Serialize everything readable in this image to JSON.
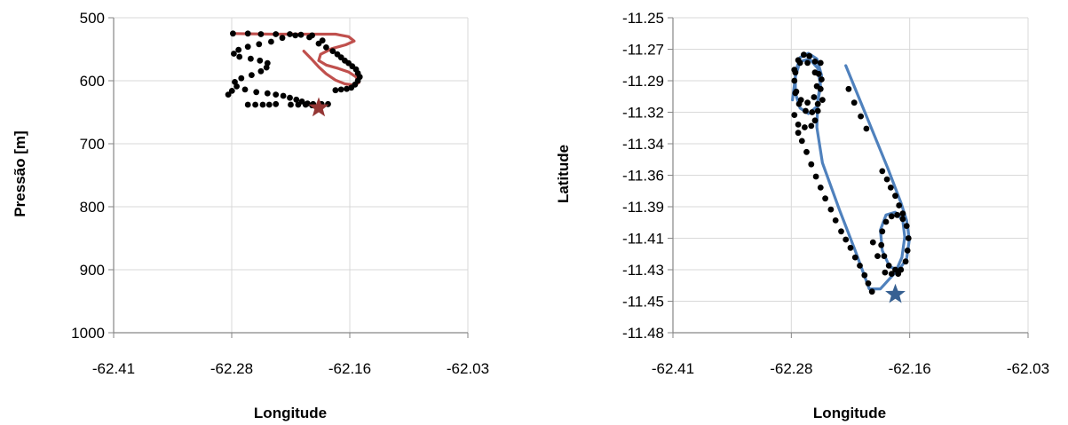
{
  "chart_data": [
    {
      "type": "scatter",
      "xlabel": "Longitude",
      "ylabel": "Pressão [m]",
      "xlim": [
        -62.41,
        -62.03
      ],
      "ylim": [
        500,
        1000
      ],
      "y_inverted": true,
      "x_ticks": [
        "-62.41",
        "-62.28",
        "-62.16",
        "-62.03"
      ],
      "y_ticks": [
        "500",
        "600",
        "700",
        "800",
        "900",
        "1000"
      ],
      "grid": "horizontal-and-vertical",
      "legend": "none",
      "line_color": "#c0504d",
      "marker_color": "#000000",
      "star_color": "#943634",
      "series": [
        {
          "role": "track-line",
          "points": [
            [
              -62.206,
              553
            ],
            [
              -62.198,
              565
            ],
            [
              -62.19,
              578
            ],
            [
              -62.182,
              589
            ],
            [
              -62.172,
              599
            ],
            [
              -62.162,
              605
            ],
            [
              -62.152,
              607
            ],
            [
              -62.147,
              603
            ],
            [
              -62.15,
              594
            ],
            [
              -62.158,
              586
            ],
            [
              -62.17,
              580
            ],
            [
              -62.182,
              575
            ],
            [
              -62.19,
              568
            ],
            [
              -62.188,
              558
            ],
            [
              -62.176,
              549
            ],
            [
              -62.161,
              543
            ],
            [
              -62.152,
              537
            ],
            [
              -62.158,
              530
            ],
            [
              -62.172,
              526
            ],
            [
              -62.2,
              526
            ],
            [
              -62.24,
              526
            ],
            [
              -62.282,
              525
            ]
          ]
        },
        {
          "role": "observations",
          "points": [
            [
              -62.282,
              525
            ],
            [
              -62.266,
              525
            ],
            [
              -62.252,
              526
            ],
            [
              -62.236,
              526
            ],
            [
              -62.221,
              526
            ],
            [
              -62.209,
              527
            ],
            [
              -62.197,
              528
            ],
            [
              -62.229,
              532
            ],
            [
              -62.241,
              538
            ],
            [
              -62.254,
              542
            ],
            [
              -62.266,
              546
            ],
            [
              -62.276,
              551
            ],
            [
              -62.281,
              557
            ],
            [
              -62.275,
              562
            ],
            [
              -62.263,
              565
            ],
            [
              -62.253,
              568
            ],
            [
              -62.245,
              572
            ],
            [
              -62.246,
              579
            ],
            [
              -62.252,
              585
            ],
            [
              -62.262,
              591
            ],
            [
              -62.273,
              596
            ],
            [
              -62.28,
              602
            ],
            [
              -62.278,
              609
            ],
            [
              -62.269,
              614
            ],
            [
              -62.257,
              618
            ],
            [
              -62.245,
              620
            ],
            [
              -62.236,
              622
            ],
            [
              -62.228,
              624
            ],
            [
              -62.221,
              627
            ],
            [
              -62.214,
              630
            ],
            [
              -62.208,
              633
            ],
            [
              -62.202,
              636
            ],
            [
              -62.197,
              639
            ],
            [
              -62.19,
              541
            ],
            [
              -62.182,
              547
            ],
            [
              -62.175,
              553
            ],
            [
              -62.17,
              558
            ],
            [
              -62.166,
              563
            ],
            [
              -62.162,
              568
            ],
            [
              -62.158,
              572
            ],
            [
              -62.154,
              577
            ],
            [
              -62.15,
              582
            ],
            [
              -62.148,
              588
            ],
            [
              -62.146,
              594
            ],
            [
              -62.148,
              600
            ],
            [
              -62.151,
              606
            ],
            [
              -62.155,
              611
            ],
            [
              -62.16,
              613
            ],
            [
              -62.166,
              614
            ],
            [
              -62.172,
              615
            ],
            [
              -62.266,
              638
            ],
            [
              -62.258,
              638
            ],
            [
              -62.25,
              638
            ],
            [
              -62.243,
              638
            ],
            [
              -62.236,
              637
            ],
            [
              -62.287,
              622
            ],
            [
              -62.283,
              616
            ],
            [
              -62.22,
              638
            ],
            [
              -62.212,
              638
            ],
            [
              -62.204,
              638
            ],
            [
              -62.196,
              637
            ],
            [
              -62.187,
              637
            ],
            [
              -62.18,
              637
            ],
            [
              -62.186,
              536
            ],
            [
              -62.2,
              531
            ],
            [
              -62.215,
              528
            ]
          ]
        }
      ],
      "marker_star": [
        -62.19,
        643
      ]
    },
    {
      "type": "scatter",
      "xlabel": "Longitude",
      "ylabel": "Latitude",
      "xlim": [
        -62.41,
        -62.03
      ],
      "ylim": [
        -11.48,
        -11.25
      ],
      "x_ticks": [
        "-62.41",
        "-62.28",
        "-62.16",
        "-62.03"
      ],
      "y_ticks": [
        "-11.25",
        "-11.27",
        "-11.29",
        "-11.32",
        "-11.34",
        "-11.36",
        "-11.39",
        "-11.41",
        "-11.43",
        "-11.45",
        "-11.48"
      ],
      "grid": "horizontal-and-vertical",
      "legend": "none",
      "line_color": "#4f81bd",
      "marker_color": "#000000",
      "star_color": "#366092",
      "series": [
        {
          "role": "track-line",
          "points": [
            [
              -62.225,
              -11.285
            ],
            [
              -62.21,
              -11.31
            ],
            [
              -62.195,
              -11.335
            ],
            [
              -62.18,
              -11.36
            ],
            [
              -62.166,
              -11.385
            ],
            [
              -62.16,
              -11.398
            ],
            [
              -62.157,
              -11.412
            ],
            [
              -62.16,
              -11.426
            ],
            [
              -62.168,
              -11.434
            ],
            [
              -62.178,
              -11.432
            ],
            [
              -62.186,
              -11.42
            ],
            [
              -62.188,
              -11.405
            ],
            [
              -62.182,
              -11.394
            ],
            [
              -62.172,
              -11.392
            ],
            [
              -62.164,
              -11.398
            ],
            [
              -62.162,
              -11.41
            ],
            [
              -62.165,
              -11.425
            ],
            [
              -62.172,
              -11.436
            ],
            [
              -62.188,
              -11.448
            ],
            [
              -62.2,
              -11.448
            ],
            [
              -62.215,
              -11.42
            ],
            [
              -62.232,
              -11.39
            ],
            [
              -62.25,
              -11.356
            ],
            [
              -62.256,
              -11.33
            ],
            [
              -62.255,
              -11.31
            ],
            [
              -62.251,
              -11.292
            ],
            [
              -62.256,
              -11.28
            ],
            [
              -62.265,
              -11.276
            ],
            [
              -62.274,
              -11.279
            ],
            [
              -62.279,
              -11.29
            ],
            [
              -62.279,
              -11.305
            ],
            [
              -62.274,
              -11.316
            ],
            [
              -62.265,
              -11.32
            ],
            [
              -62.256,
              -11.315
            ],
            [
              -62.252,
              -11.3
            ],
            [
              -62.255,
              -11.287
            ],
            [
              -62.264,
              -11.28
            ],
            [
              -62.274,
              -11.282
            ],
            [
              -62.279,
              -11.293
            ],
            [
              -62.282,
              -11.31
            ]
          ]
        },
        {
          "role": "observations",
          "points": [
            [
              -62.279,
              -11.29
            ],
            [
              -62.279,
              -11.305
            ],
            [
              -62.275,
              -11.313
            ],
            [
              -62.268,
              -11.318
            ],
            [
              -62.261,
              -11.319
            ],
            [
              -62.255,
              -11.313
            ],
            [
              -62.252,
              -11.302
            ],
            [
              -62.254,
              -11.291
            ],
            [
              -62.258,
              -11.282
            ],
            [
              -62.264,
              -11.278
            ],
            [
              -62.27,
              -11.277
            ],
            [
              -62.276,
              -11.281
            ],
            [
              -62.28,
              -11.288
            ],
            [
              -62.28,
              -11.296
            ],
            [
              -62.278,
              -11.304
            ],
            [
              -62.273,
              -11.31
            ],
            [
              -62.266,
              -11.312
            ],
            [
              -62.259,
              -11.308
            ],
            [
              -62.256,
              -11.3
            ],
            [
              -62.258,
              -11.29
            ],
            [
              -62.266,
              -11.283
            ],
            [
              -62.274,
              -11.283
            ],
            [
              -62.25,
              -11.31
            ],
            [
              -62.251,
              -11.295
            ],
            [
              -62.252,
              -11.283
            ],
            [
              -62.255,
              -11.318
            ],
            [
              -62.258,
              -11.325
            ],
            [
              -62.262,
              -11.329
            ],
            [
              -62.269,
              -11.33
            ],
            [
              -62.276,
              -11.328
            ],
            [
              -62.28,
              -11.321
            ],
            [
              -62.276,
              -11.334
            ],
            [
              -62.272,
              -11.34
            ],
            [
              -62.267,
              -11.348
            ],
            [
              -62.262,
              -11.357
            ],
            [
              -62.257,
              -11.366
            ],
            [
              -62.252,
              -11.374
            ],
            [
              -62.247,
              -11.382
            ],
            [
              -62.241,
              -11.39
            ],
            [
              -62.236,
              -11.398
            ],
            [
              -62.23,
              -11.406
            ],
            [
              -62.225,
              -11.412
            ],
            [
              -62.22,
              -11.418
            ],
            [
              -62.215,
              -11.425
            ],
            [
              -62.21,
              -11.431
            ],
            [
              -62.205,
              -11.438
            ],
            [
              -62.201,
              -11.444
            ],
            [
              -62.197,
              -11.45
            ],
            [
              -62.222,
              -11.302
            ],
            [
              -62.216,
              -11.312
            ],
            [
              -62.209,
              -11.322
            ],
            [
              -62.203,
              -11.331
            ],
            [
              -62.186,
              -11.362
            ],
            [
              -62.181,
              -11.368
            ],
            [
              -62.177,
              -11.374
            ],
            [
              -62.172,
              -11.38
            ],
            [
              -62.168,
              -11.387
            ],
            [
              -62.164,
              -11.393
            ],
            [
              -62.16,
              -11.402
            ],
            [
              -62.158,
              -11.411
            ],
            [
              -62.159,
              -11.42
            ],
            [
              -62.161,
              -11.428
            ],
            [
              -62.166,
              -11.434
            ],
            [
              -62.172,
              -11.434
            ],
            [
              -62.179,
              -11.431
            ],
            [
              -62.184,
              -11.424
            ],
            [
              -62.187,
              -11.416
            ],
            [
              -62.186,
              -11.406
            ],
            [
              -62.182,
              -11.399
            ],
            [
              -62.176,
              -11.395
            ],
            [
              -62.17,
              -11.394
            ],
            [
              -62.164,
              -11.397
            ],
            [
              -62.183,
              -11.436
            ],
            [
              -62.176,
              -11.437
            ],
            [
              -62.169,
              -11.437
            ],
            [
              -62.191,
              -11.424
            ],
            [
              -62.196,
              -11.414
            ]
          ]
        }
      ],
      "marker_star": [
        -62.172,
        -11.452
      ]
    }
  ]
}
